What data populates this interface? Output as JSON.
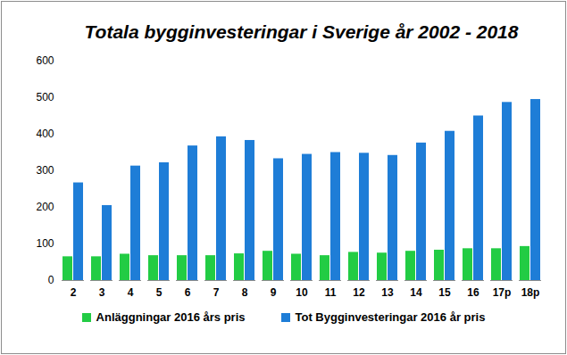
{
  "chart_data": {
    "type": "bar",
    "title": "Totala bygginvesteringar  i Sverige år 2002 - 2018",
    "categories": [
      "2",
      "3",
      "4",
      "5",
      "6",
      "7",
      "8",
      "9",
      "10",
      "11",
      "12",
      "13",
      "14",
      "15",
      "16",
      "17p",
      "18p"
    ],
    "series": [
      {
        "name": "Anläggningar 2016 års pris",
        "color": "#22cc44",
        "values": [
          65,
          65,
          72,
          68,
          68,
          68,
          73,
          80,
          72,
          68,
          77,
          75,
          80,
          83,
          87,
          87,
          93
        ]
      },
      {
        "name": "Tot Bygginvesteringar 2016 år pris",
        "color": "#1e7dd7",
        "values": [
          267,
          205,
          313,
          322,
          368,
          393,
          383,
          333,
          345,
          350,
          348,
          342,
          376,
          408,
          450,
          487,
          495
        ]
      }
    ],
    "ylim": [
      0,
      600
    ],
    "yticks": [
      0,
      100,
      200,
      300,
      400,
      500,
      600
    ],
    "grid": false,
    "legend": "bottom"
  }
}
